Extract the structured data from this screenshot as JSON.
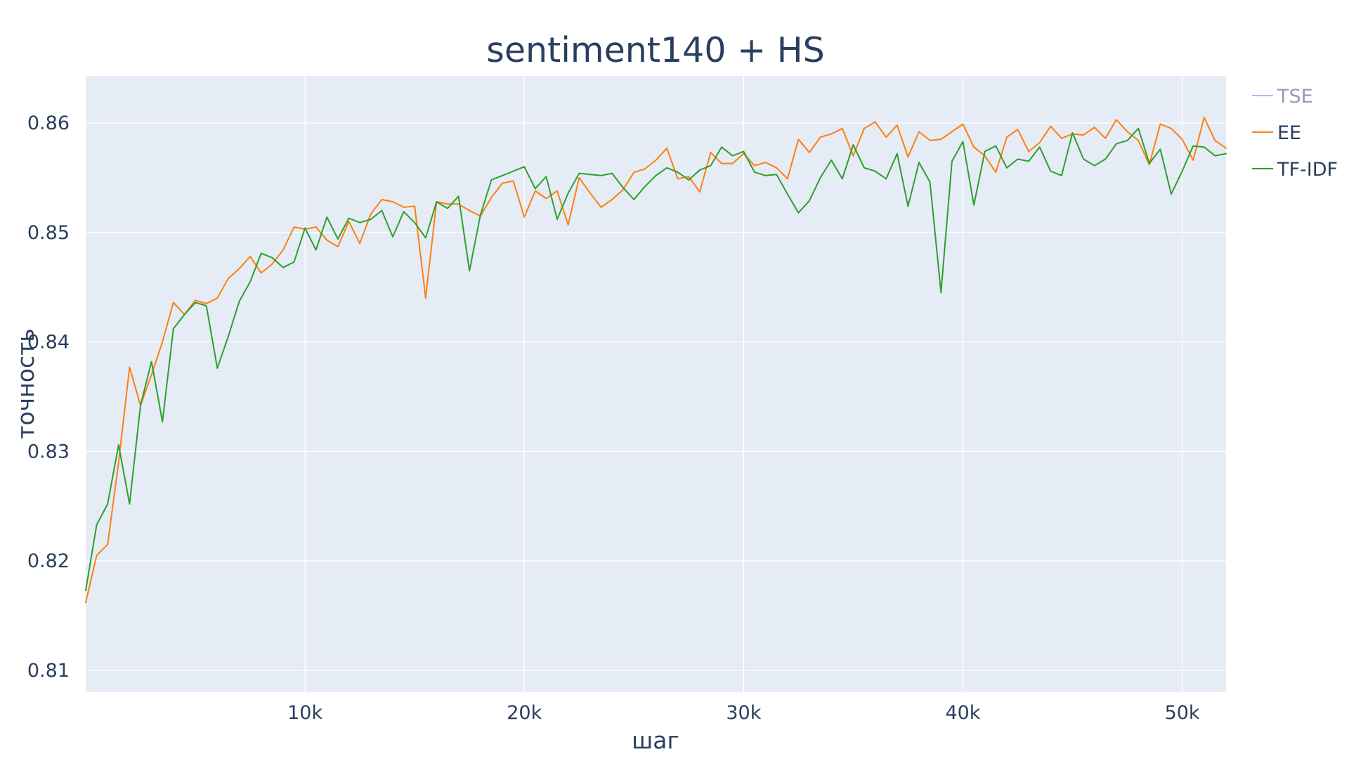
{
  "chart_data": {
    "type": "line",
    "title": "sentiment140 + HS",
    "xlabel": "шаг",
    "ylabel": "точность",
    "xlim": [
      0,
      52000
    ],
    "ylim": [
      0.808,
      0.8643
    ],
    "x_ticks": [
      {
        "value": 10000,
        "label": "10k"
      },
      {
        "value": 20000,
        "label": "20k"
      },
      {
        "value": 30000,
        "label": "30k"
      },
      {
        "value": 40000,
        "label": "40k"
      },
      {
        "value": 50000,
        "label": "50k"
      }
    ],
    "y_ticks": [
      {
        "value": 0.81,
        "label": "0.81"
      },
      {
        "value": 0.82,
        "label": "0.82"
      },
      {
        "value": 0.83,
        "label": "0.83"
      },
      {
        "value": 0.84,
        "label": "0.84"
      },
      {
        "value": 0.85,
        "label": "0.85"
      },
      {
        "value": 0.86,
        "label": "0.86"
      }
    ],
    "grid": true,
    "background": "#e5ecf6",
    "legend_position": "top-right",
    "series": [
      {
        "name": "TSE",
        "color": "#636efa",
        "visible": false,
        "points": []
      },
      {
        "name": "EE",
        "color": "#ff7f0e",
        "visible": true,
        "points": [
          [
            0,
            0.8162
          ],
          [
            500,
            0.8205
          ],
          [
            1000,
            0.8215
          ],
          [
            1500,
            0.829
          ],
          [
            2000,
            0.8377
          ],
          [
            2500,
            0.8342
          ],
          [
            3000,
            0.837
          ],
          [
            3500,
            0.84
          ],
          [
            4000,
            0.8436
          ],
          [
            4500,
            0.8425
          ],
          [
            5000,
            0.8438
          ],
          [
            5500,
            0.8435
          ],
          [
            6000,
            0.844
          ],
          [
            6500,
            0.8458
          ],
          [
            7000,
            0.8467
          ],
          [
            7500,
            0.8478
          ],
          [
            8000,
            0.8463
          ],
          [
            8500,
            0.8471
          ],
          [
            9000,
            0.8484
          ],
          [
            9500,
            0.8505
          ],
          [
            10000,
            0.8503
          ],
          [
            10500,
            0.8505
          ],
          [
            11000,
            0.8493
          ],
          [
            11500,
            0.8487
          ],
          [
            12000,
            0.851
          ],
          [
            12500,
            0.849
          ],
          [
            13000,
            0.8517
          ],
          [
            13500,
            0.853
          ],
          [
            14000,
            0.8528
          ],
          [
            14500,
            0.8523
          ],
          [
            15000,
            0.8524
          ],
          [
            15500,
            0.844
          ],
          [
            16000,
            0.8528
          ],
          [
            16500,
            0.8526
          ],
          [
            17000,
            0.8526
          ],
          [
            17500,
            0.852
          ],
          [
            18000,
            0.8515
          ],
          [
            18500,
            0.8532
          ],
          [
            19000,
            0.8545
          ],
          [
            19500,
            0.8547
          ],
          [
            20000,
            0.8514
          ],
          [
            20500,
            0.8538
          ],
          [
            21000,
            0.8531
          ],
          [
            21500,
            0.8538
          ],
          [
            22000,
            0.8507
          ],
          [
            22500,
            0.855
          ],
          [
            23000,
            0.8536
          ],
          [
            23500,
            0.8523
          ],
          [
            24000,
            0.853
          ],
          [
            24500,
            0.8539
          ],
          [
            25000,
            0.8555
          ],
          [
            25500,
            0.8558
          ],
          [
            26000,
            0.8566
          ],
          [
            26500,
            0.8577
          ],
          [
            27000,
            0.8549
          ],
          [
            27500,
            0.8551
          ],
          [
            28000,
            0.8537
          ],
          [
            28500,
            0.8573
          ],
          [
            29000,
            0.8563
          ],
          [
            29500,
            0.8563
          ],
          [
            30000,
            0.8572
          ],
          [
            30500,
            0.8561
          ],
          [
            31000,
            0.8564
          ],
          [
            31500,
            0.8559
          ],
          [
            32000,
            0.8549
          ],
          [
            32500,
            0.8585
          ],
          [
            33000,
            0.8573
          ],
          [
            33500,
            0.8587
          ],
          [
            34000,
            0.859
          ],
          [
            34500,
            0.8595
          ],
          [
            35000,
            0.857
          ],
          [
            35500,
            0.8595
          ],
          [
            36000,
            0.8601
          ],
          [
            36500,
            0.8587
          ],
          [
            37000,
            0.8598
          ],
          [
            37500,
            0.8569
          ],
          [
            38000,
            0.8592
          ],
          [
            38500,
            0.8584
          ],
          [
            39000,
            0.8585
          ],
          [
            39500,
            0.8592
          ],
          [
            40000,
            0.8599
          ],
          [
            40500,
            0.8578
          ],
          [
            41000,
            0.857
          ],
          [
            41500,
            0.8555
          ],
          [
            42000,
            0.8587
          ],
          [
            42500,
            0.8594
          ],
          [
            43000,
            0.8574
          ],
          [
            43500,
            0.8582
          ],
          [
            44000,
            0.8597
          ],
          [
            44500,
            0.8586
          ],
          [
            45000,
            0.859
          ],
          [
            45500,
            0.8589
          ],
          [
            46000,
            0.8596
          ],
          [
            46500,
            0.8586
          ],
          [
            47000,
            0.8603
          ],
          [
            47500,
            0.8592
          ],
          [
            48000,
            0.8584
          ],
          [
            48500,
            0.8562
          ],
          [
            49000,
            0.8599
          ],
          [
            49500,
            0.8595
          ],
          [
            50000,
            0.8585
          ],
          [
            50500,
            0.8566
          ],
          [
            51000,
            0.8605
          ],
          [
            51500,
            0.8584
          ],
          [
            52000,
            0.8577
          ]
        ]
      },
      {
        "name": "TF-IDF",
        "color": "#2ca02c",
        "visible": true,
        "points": [
          [
            0,
            0.8173
          ],
          [
            500,
            0.8233
          ],
          [
            1000,
            0.8252
          ],
          [
            1500,
            0.8306
          ],
          [
            2000,
            0.8252
          ],
          [
            2500,
            0.8342
          ],
          [
            3000,
            0.8382
          ],
          [
            3500,
            0.8327
          ],
          [
            4000,
            0.8412
          ],
          [
            4500,
            0.8425
          ],
          [
            5000,
            0.8436
          ],
          [
            5500,
            0.8433
          ],
          [
            6000,
            0.8376
          ],
          [
            6500,
            0.8405
          ],
          [
            7000,
            0.8437
          ],
          [
            7500,
            0.8455
          ],
          [
            8000,
            0.8481
          ],
          [
            8500,
            0.8477
          ],
          [
            9000,
            0.8468
          ],
          [
            9500,
            0.8473
          ],
          [
            10000,
            0.8504
          ],
          [
            10500,
            0.8484
          ],
          [
            11000,
            0.8514
          ],
          [
            11500,
            0.8494
          ],
          [
            12000,
            0.8513
          ],
          [
            12500,
            0.8509
          ],
          [
            13000,
            0.8512
          ],
          [
            13500,
            0.852
          ],
          [
            14000,
            0.8496
          ],
          [
            14500,
            0.8519
          ],
          [
            15000,
            0.8509
          ],
          [
            15500,
            0.8495
          ],
          [
            16000,
            0.8528
          ],
          [
            16500,
            0.8522
          ],
          [
            17000,
            0.8533
          ],
          [
            17500,
            0.8465
          ],
          [
            18000,
            0.8516
          ],
          [
            18500,
            0.8548
          ],
          [
            19000,
            0.8552
          ],
          [
            19500,
            0.8556
          ],
          [
            20000,
            0.856
          ],
          [
            20500,
            0.854
          ],
          [
            21000,
            0.8551
          ],
          [
            21500,
            0.8512
          ],
          [
            22000,
            0.8536
          ],
          [
            22500,
            0.8554
          ],
          [
            23000,
            0.8553
          ],
          [
            23500,
            0.8552
          ],
          [
            24000,
            0.8554
          ],
          [
            24500,
            0.8541
          ],
          [
            25000,
            0.853
          ],
          [
            25500,
            0.8542
          ],
          [
            26000,
            0.8552
          ],
          [
            26500,
            0.8559
          ],
          [
            27000,
            0.8555
          ],
          [
            27500,
            0.8548
          ],
          [
            28000,
            0.8557
          ],
          [
            28500,
            0.8561
          ],
          [
            29000,
            0.8578
          ],
          [
            29500,
            0.857
          ],
          [
            30000,
            0.8574
          ],
          [
            30500,
            0.8555
          ],
          [
            31000,
            0.8552
          ],
          [
            31500,
            0.8553
          ],
          [
            32000,
            0.8535
          ],
          [
            32500,
            0.8518
          ],
          [
            33000,
            0.8529
          ],
          [
            33500,
            0.855
          ],
          [
            34000,
            0.8566
          ],
          [
            34500,
            0.8549
          ],
          [
            35000,
            0.858
          ],
          [
            35500,
            0.8559
          ],
          [
            36000,
            0.8556
          ],
          [
            36500,
            0.8549
          ],
          [
            37000,
            0.8572
          ],
          [
            37500,
            0.8524
          ],
          [
            38000,
            0.8564
          ],
          [
            38500,
            0.8546
          ],
          [
            39000,
            0.8445
          ],
          [
            39500,
            0.8565
          ],
          [
            40000,
            0.8583
          ],
          [
            40500,
            0.8525
          ],
          [
            41000,
            0.8574
          ],
          [
            41500,
            0.8579
          ],
          [
            42000,
            0.8559
          ],
          [
            42500,
            0.8567
          ],
          [
            43000,
            0.8565
          ],
          [
            43500,
            0.8578
          ],
          [
            44000,
            0.8556
          ],
          [
            44500,
            0.8552
          ],
          [
            45000,
            0.8591
          ],
          [
            45500,
            0.8567
          ],
          [
            46000,
            0.8561
          ],
          [
            46500,
            0.8567
          ],
          [
            47000,
            0.8581
          ],
          [
            47500,
            0.8584
          ],
          [
            48000,
            0.8595
          ],
          [
            48500,
            0.8563
          ],
          [
            49000,
            0.8576
          ],
          [
            49500,
            0.8535
          ],
          [
            50000,
            0.8556
          ],
          [
            50500,
            0.8579
          ],
          [
            51000,
            0.8578
          ],
          [
            51500,
            0.857
          ],
          [
            52000,
            0.8572
          ]
        ]
      }
    ]
  }
}
